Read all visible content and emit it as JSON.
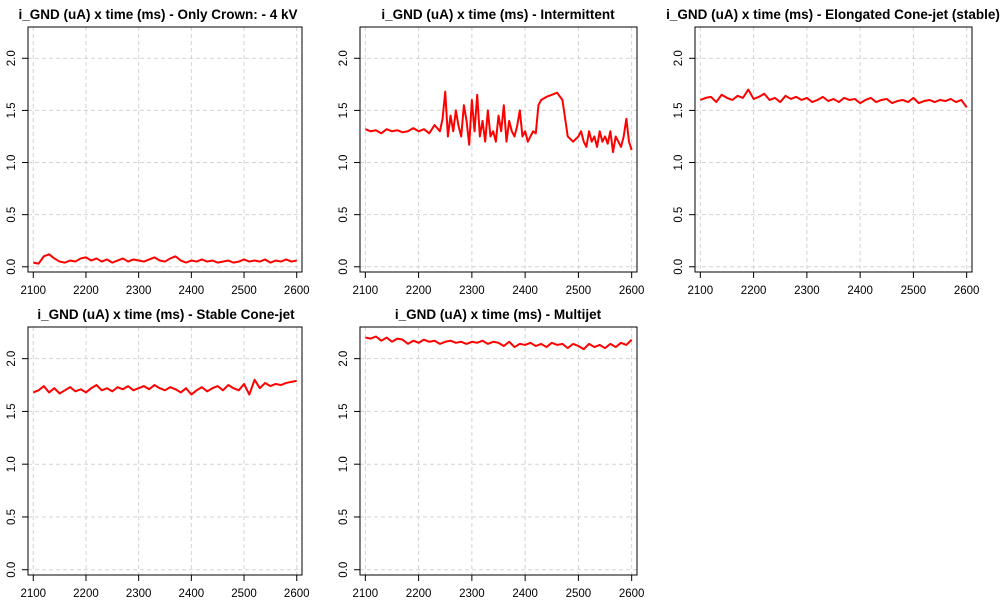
{
  "chart_data": [
    {
      "type": "line",
      "title": "i_GND (uA) x time (ms) -  Only Crown: - 4 kV",
      "xlabel": "",
      "ylabel": "",
      "xlim": [
        2090,
        2610
      ],
      "ylim": [
        -0.05,
        2.3
      ],
      "xticks": [
        "2100",
        "2200",
        "2300",
        "2400",
        "2500",
        "2600"
      ],
      "yticks": [
        "0.0",
        "0.5",
        "1.0",
        "1.5",
        "2.0"
      ],
      "grid": true,
      "color": "#ff0000",
      "x": [
        2100,
        2110,
        2120,
        2130,
        2140,
        2150,
        2160,
        2170,
        2180,
        2190,
        2200,
        2210,
        2220,
        2230,
        2240,
        2250,
        2260,
        2270,
        2280,
        2290,
        2300,
        2310,
        2320,
        2330,
        2340,
        2350,
        2360,
        2370,
        2380,
        2390,
        2400,
        2410,
        2420,
        2430,
        2440,
        2450,
        2460,
        2470,
        2480,
        2490,
        2500,
        2510,
        2520,
        2530,
        2540,
        2550,
        2560,
        2570,
        2580,
        2590,
        2600
      ],
      "values": [
        0.04,
        0.03,
        0.1,
        0.12,
        0.08,
        0.05,
        0.04,
        0.06,
        0.05,
        0.08,
        0.09,
        0.06,
        0.08,
        0.05,
        0.07,
        0.04,
        0.06,
        0.08,
        0.05,
        0.07,
        0.06,
        0.05,
        0.07,
        0.09,
        0.06,
        0.05,
        0.08,
        0.1,
        0.06,
        0.04,
        0.06,
        0.05,
        0.07,
        0.05,
        0.06,
        0.04,
        0.05,
        0.06,
        0.04,
        0.05,
        0.07,
        0.05,
        0.06,
        0.05,
        0.07,
        0.04,
        0.06,
        0.05,
        0.07,
        0.05,
        0.06
      ]
    },
    {
      "type": "line",
      "title": "i_GND (uA) x time (ms) -  Intermittent",
      "xlabel": "",
      "ylabel": "",
      "xlim": [
        2090,
        2610
      ],
      "ylim": [
        -0.05,
        2.3
      ],
      "xticks": [
        "2100",
        "2200",
        "2300",
        "2400",
        "2500",
        "2600"
      ],
      "yticks": [
        "0.0",
        "0.5",
        "1.0",
        "1.5",
        "2.0"
      ],
      "grid": true,
      "color": "#ff0000",
      "x": [
        2100,
        2110,
        2120,
        2130,
        2140,
        2150,
        2160,
        2170,
        2180,
        2190,
        2200,
        2210,
        2220,
        2230,
        2240,
        2245,
        2250,
        2255,
        2260,
        2265,
        2270,
        2275,
        2280,
        2285,
        2290,
        2295,
        2300,
        2305,
        2310,
        2315,
        2320,
        2325,
        2330,
        2335,
        2340,
        2345,
        2350,
        2355,
        2360,
        2365,
        2370,
        2375,
        2380,
        2385,
        2390,
        2395,
        2400,
        2405,
        2410,
        2415,
        2420,
        2425,
        2430,
        2440,
        2450,
        2460,
        2470,
        2480,
        2490,
        2500,
        2505,
        2510,
        2515,
        2520,
        2525,
        2530,
        2535,
        2540,
        2545,
        2550,
        2555,
        2560,
        2565,
        2570,
        2575,
        2580,
        2585,
        2590,
        2595,
        2600
      ],
      "values": [
        1.32,
        1.3,
        1.31,
        1.28,
        1.32,
        1.3,
        1.31,
        1.29,
        1.3,
        1.33,
        1.3,
        1.32,
        1.28,
        1.36,
        1.3,
        1.42,
        1.68,
        1.25,
        1.45,
        1.3,
        1.5,
        1.35,
        1.25,
        1.55,
        1.4,
        1.17,
        1.6,
        1.3,
        1.65,
        1.25,
        1.4,
        1.2,
        1.5,
        1.25,
        1.3,
        1.2,
        1.45,
        1.3,
        1.55,
        1.2,
        1.4,
        1.3,
        1.25,
        1.35,
        1.5,
        1.25,
        1.3,
        1.2,
        1.25,
        1.3,
        1.28,
        1.55,
        1.6,
        1.63,
        1.65,
        1.67,
        1.6,
        1.25,
        1.2,
        1.25,
        1.3,
        1.2,
        1.15,
        1.3,
        1.2,
        1.25,
        1.15,
        1.3,
        1.2,
        1.25,
        1.18,
        1.3,
        1.1,
        1.25,
        1.2,
        1.15,
        1.25,
        1.42,
        1.2,
        1.12
      ]
    },
    {
      "type": "line",
      "title": "i_GND (uA) x time (ms) -  Elongated Cone-jet (stable)",
      "xlabel": "",
      "ylabel": "",
      "xlim": [
        2090,
        2610
      ],
      "ylim": [
        -0.05,
        2.3
      ],
      "xticks": [
        "2100",
        "2200",
        "2300",
        "2400",
        "2500",
        "2600"
      ],
      "yticks": [
        "0.0",
        "0.5",
        "1.0",
        "1.5",
        "2.0"
      ],
      "grid": true,
      "color": "#ff0000",
      "x": [
        2100,
        2110,
        2120,
        2130,
        2140,
        2150,
        2160,
        2170,
        2180,
        2190,
        2200,
        2210,
        2220,
        2230,
        2240,
        2250,
        2260,
        2270,
        2280,
        2290,
        2300,
        2310,
        2320,
        2330,
        2340,
        2350,
        2360,
        2370,
        2380,
        2390,
        2400,
        2410,
        2420,
        2430,
        2440,
        2450,
        2460,
        2470,
        2480,
        2490,
        2500,
        2510,
        2520,
        2530,
        2540,
        2550,
        2560,
        2570,
        2580,
        2590,
        2600
      ],
      "values": [
        1.6,
        1.62,
        1.63,
        1.58,
        1.65,
        1.62,
        1.6,
        1.64,
        1.62,
        1.7,
        1.61,
        1.63,
        1.66,
        1.6,
        1.62,
        1.58,
        1.64,
        1.61,
        1.63,
        1.6,
        1.62,
        1.58,
        1.6,
        1.63,
        1.59,
        1.61,
        1.58,
        1.62,
        1.6,
        1.61,
        1.57,
        1.6,
        1.62,
        1.58,
        1.6,
        1.61,
        1.57,
        1.59,
        1.6,
        1.58,
        1.62,
        1.57,
        1.59,
        1.6,
        1.58,
        1.6,
        1.59,
        1.61,
        1.58,
        1.6,
        1.53
      ]
    },
    {
      "type": "line",
      "title": "i_GND (uA) x time (ms) -  Stable Cone-jet",
      "xlabel": "",
      "ylabel": "",
      "xlim": [
        2090,
        2610
      ],
      "ylim": [
        -0.05,
        2.3
      ],
      "xticks": [
        "2100",
        "2200",
        "2300",
        "2400",
        "2500",
        "2600"
      ],
      "yticks": [
        "0.0",
        "0.5",
        "1.0",
        "1.5",
        "2.0"
      ],
      "grid": true,
      "color": "#ff0000",
      "x": [
        2100,
        2110,
        2120,
        2130,
        2140,
        2150,
        2160,
        2170,
        2180,
        2190,
        2200,
        2210,
        2220,
        2230,
        2240,
        2250,
        2260,
        2270,
        2280,
        2290,
        2300,
        2310,
        2320,
        2330,
        2340,
        2350,
        2360,
        2370,
        2380,
        2390,
        2400,
        2410,
        2420,
        2430,
        2440,
        2450,
        2460,
        2470,
        2480,
        2490,
        2500,
        2510,
        2520,
        2530,
        2540,
        2550,
        2560,
        2570,
        2580,
        2590,
        2600
      ],
      "values": [
        1.68,
        1.7,
        1.74,
        1.68,
        1.72,
        1.67,
        1.7,
        1.73,
        1.69,
        1.71,
        1.68,
        1.72,
        1.75,
        1.7,
        1.72,
        1.69,
        1.73,
        1.71,
        1.74,
        1.7,
        1.72,
        1.74,
        1.71,
        1.75,
        1.72,
        1.7,
        1.73,
        1.71,
        1.68,
        1.72,
        1.66,
        1.7,
        1.73,
        1.69,
        1.72,
        1.74,
        1.7,
        1.75,
        1.72,
        1.7,
        1.76,
        1.66,
        1.8,
        1.72,
        1.77,
        1.74,
        1.76,
        1.75,
        1.77,
        1.78,
        1.79
      ]
    },
    {
      "type": "line",
      "title": "i_GND (uA) x time (ms) -  Multijet",
      "xlabel": "",
      "ylabel": "",
      "xlim": [
        2090,
        2610
      ],
      "ylim": [
        -0.05,
        2.3
      ],
      "xticks": [
        "2100",
        "2200",
        "2300",
        "2400",
        "2500",
        "2600"
      ],
      "yticks": [
        "0.0",
        "0.5",
        "1.0",
        "1.5",
        "2.0"
      ],
      "grid": true,
      "color": "#ff0000",
      "x": [
        2100,
        2110,
        2120,
        2130,
        2140,
        2150,
        2160,
        2170,
        2180,
        2190,
        2200,
        2210,
        2220,
        2230,
        2240,
        2250,
        2260,
        2270,
        2280,
        2290,
        2300,
        2310,
        2320,
        2330,
        2340,
        2350,
        2360,
        2370,
        2380,
        2390,
        2400,
        2410,
        2420,
        2430,
        2440,
        2450,
        2460,
        2470,
        2480,
        2490,
        2500,
        2510,
        2520,
        2530,
        2540,
        2550,
        2560,
        2570,
        2580,
        2590,
        2600
      ],
      "values": [
        2.2,
        2.19,
        2.21,
        2.17,
        2.2,
        2.16,
        2.19,
        2.18,
        2.14,
        2.17,
        2.15,
        2.18,
        2.16,
        2.17,
        2.14,
        2.16,
        2.17,
        2.15,
        2.16,
        2.14,
        2.16,
        2.15,
        2.17,
        2.14,
        2.16,
        2.15,
        2.12,
        2.16,
        2.11,
        2.14,
        2.13,
        2.15,
        2.12,
        2.14,
        2.11,
        2.15,
        2.13,
        2.14,
        2.1,
        2.14,
        2.12,
        2.09,
        2.14,
        2.11,
        2.13,
        2.1,
        2.14,
        2.11,
        2.15,
        2.13,
        2.18
      ]
    }
  ]
}
